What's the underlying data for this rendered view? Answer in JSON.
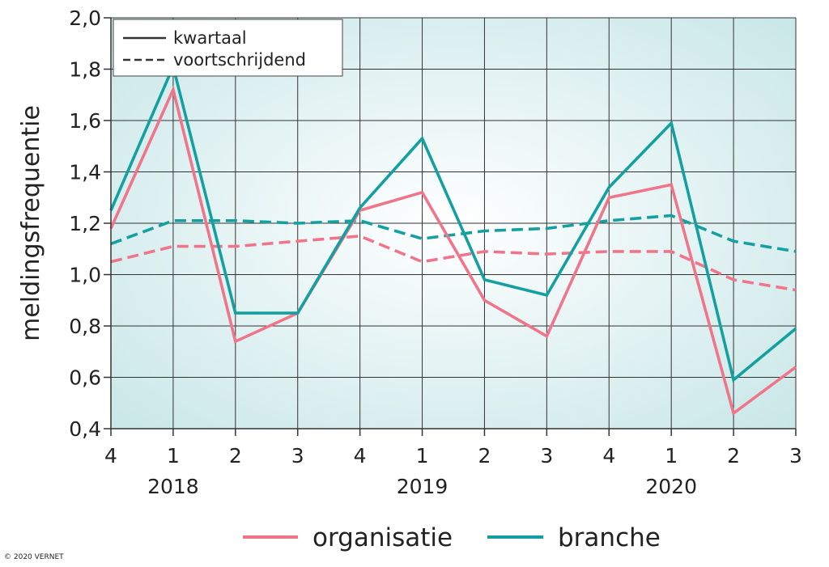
{
  "chart_data": {
    "type": "line",
    "ylabel": "meldingsfrequentie",
    "ylim": [
      0.4,
      2.0
    ],
    "yticks": [
      "0,4",
      "0,6",
      "0,8",
      "1,0",
      "1,2",
      "1,4",
      "1,6",
      "1,8",
      "2,0"
    ],
    "yticks_values": [
      0.4,
      0.6,
      0.8,
      1.0,
      1.2,
      1.4,
      1.6,
      1.8,
      2.0
    ],
    "categories": [
      "4",
      "1",
      "2",
      "3",
      "4",
      "1",
      "2",
      "3",
      "4",
      "1",
      "2",
      "3"
    ],
    "years": [
      {
        "label": "2018",
        "category_index": 1
      },
      {
        "label": "2019",
        "category_index": 5
      },
      {
        "label": "2020",
        "category_index": 9
      }
    ],
    "grid": true,
    "line_style_legend": [
      {
        "label": "kwartaal",
        "style": "solid"
      },
      {
        "label": "voortschrijdend",
        "style": "dashed"
      }
    ],
    "series": [
      {
        "name": "organisatie",
        "style": "solid",
        "color": "#f0758a",
        "values": [
          1.18,
          1.72,
          0.74,
          0.85,
          1.25,
          1.32,
          0.9,
          0.76,
          1.3,
          1.35,
          0.46,
          0.64
        ]
      },
      {
        "name": "branche",
        "style": "solid",
        "color": "#14a0a0",
        "values": [
          1.25,
          1.81,
          0.85,
          0.85,
          1.26,
          1.53,
          0.98,
          0.92,
          1.34,
          1.59,
          0.59,
          0.79
        ]
      },
      {
        "name": "organisatie",
        "style": "dashed",
        "color": "#f0758a",
        "values": [
          1.05,
          1.11,
          1.11,
          1.13,
          1.15,
          1.05,
          1.09,
          1.08,
          1.09,
          1.09,
          0.98,
          0.94
        ]
      },
      {
        "name": "branche",
        "style": "dashed",
        "color": "#14a0a0",
        "values": [
          1.12,
          1.21,
          1.21,
          1.2,
          1.21,
          1.14,
          1.17,
          1.18,
          1.21,
          1.23,
          1.13,
          1.09
        ]
      }
    ],
    "color_legend": [
      {
        "label": "organisatie",
        "color": "#f0758a"
      },
      {
        "label": "branche",
        "color": "#14a0a0"
      }
    ]
  },
  "copyright": "© 2020 VERNET"
}
